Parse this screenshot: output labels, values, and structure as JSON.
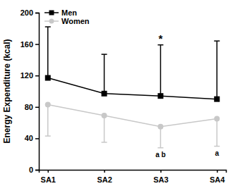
{
  "chart_data": {
    "type": "line",
    "y_label": "Energy Expenditure (kcal)",
    "categories": [
      "SA1",
      "SA2",
      "SA3",
      "SA4"
    ],
    "series": [
      {
        "name": "Men",
        "color": "#000000",
        "marker": "square",
        "values": [
          117,
          97,
          94,
          90
        ],
        "error_plus": [
          65,
          50,
          65,
          74
        ]
      },
      {
        "name": "Women",
        "color": "#c8c8c8",
        "marker": "circle",
        "values": [
          83,
          69,
          55,
          65
        ],
        "error_minus": [
          40,
          34,
          27,
          35
        ]
      }
    ],
    "annotations": [
      {
        "text": "*",
        "category": "SA3",
        "series": "Men"
      },
      {
        "text": "a b",
        "category": "SA3",
        "series": "Women"
      },
      {
        "text": "a",
        "category": "SA4",
        "series": "Women"
      }
    ],
    "ylim": [
      0,
      200
    ],
    "yticks": [
      0,
      40,
      80,
      120,
      160,
      200
    ],
    "legend": "top-left",
    "grid": false
  }
}
